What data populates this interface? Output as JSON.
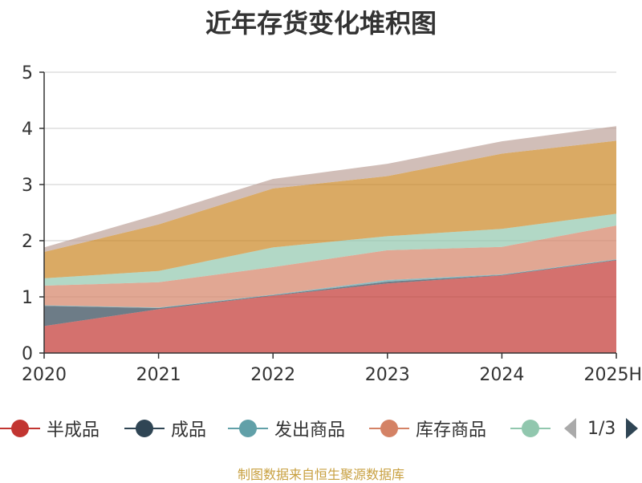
{
  "title": "近年存货变化堆积图",
  "source": "制图数据来自恒生聚源数据库",
  "legend": {
    "items": [
      {
        "label": "半成品",
        "color": "#c23531"
      },
      {
        "label": "成品",
        "color": "#2f4554"
      },
      {
        "label": "发出商品",
        "color": "#61a0a8"
      },
      {
        "label": "库存商品",
        "color": "#d48265"
      },
      {
        "label": "",
        "color": "#91c7ae"
      }
    ],
    "page": "1/3"
  },
  "chart_data": {
    "type": "area",
    "stacked": true,
    "title": "近年存货变化堆积图",
    "categories": [
      "2020",
      "2021",
      "2022",
      "2023",
      "2024",
      "2025H"
    ],
    "ylim": [
      0,
      5
    ],
    "yticks": [
      0,
      1,
      2,
      3,
      4,
      5
    ],
    "grid": true,
    "series": [
      {
        "name": "半成品",
        "color": "#c23531",
        "values": [
          0.48,
          0.78,
          1.02,
          1.24,
          1.38,
          1.65
        ]
      },
      {
        "name": "成品",
        "color": "#2f4554",
        "values": [
          0.36,
          0.02,
          0.01,
          0.03,
          0.01,
          0.01
        ]
      },
      {
        "name": "发出商品",
        "color": "#61a0a8",
        "values": [
          0.01,
          0.01,
          0.01,
          0.03,
          0.01,
          0.01
        ]
      },
      {
        "name": "库存商品",
        "color": "#d48265",
        "values": [
          0.35,
          0.45,
          0.49,
          0.53,
          0.49,
          0.6
        ]
      },
      {
        "name": "",
        "color": "#91c7ae",
        "values": [
          0.13,
          0.2,
          0.35,
          0.25,
          0.32,
          0.21
        ]
      },
      {
        "name": "",
        "color": "#749f83",
        "values": [
          0.0,
          0.0,
          0.0,
          0.0,
          0.0,
          0.0
        ]
      },
      {
        "name": "",
        "color": "#ca8622",
        "values": [
          0.47,
          0.83,
          1.05,
          1.07,
          1.34,
          1.3
        ]
      },
      {
        "name": "",
        "color": "#bda29a",
        "values": [
          0.08,
          0.18,
          0.17,
          0.22,
          0.22,
          0.26
        ]
      }
    ]
  }
}
